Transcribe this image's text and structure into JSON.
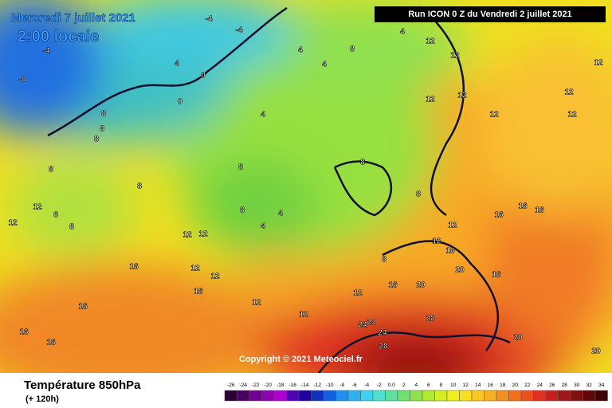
{
  "header": {
    "date": "Mercredi 7 juillet 2021",
    "time": "2:00 locale",
    "run": "Run ICON 0 Z du Vendredi 2 juillet 2021",
    "copyright": "Copyright © 2021 Meteociel.fr"
  },
  "footer": {
    "title": "Température 850hPa",
    "lead": "(+ 120h)"
  },
  "legend": {
    "labels": [
      "-26",
      "-24",
      "-22",
      "-20",
      "-18",
      "-16",
      "-14",
      "-12",
      "-10",
      "-8",
      "-6",
      "-4",
      "-2",
      "0.0",
      "2",
      "4",
      "6",
      "8",
      "10",
      "12",
      "14",
      "16",
      "18",
      "20",
      "22",
      "24",
      "26",
      "28",
      "30",
      "32",
      "34"
    ],
    "colors": [
      "#2a0030",
      "#4a0060",
      "#700090",
      "#9000b0",
      "#b000d0",
      "#5000b0",
      "#2000a0",
      "#1030c0",
      "#1060e0",
      "#2090f0",
      "#30b0f0",
      "#40d0f0",
      "#50e0d0",
      "#60e0a0",
      "#70e070",
      "#90e050",
      "#b0e830",
      "#d0f020",
      "#f0f020",
      "#f8e020",
      "#f8c820",
      "#f8b020",
      "#f09020",
      "#f07020",
      "#e85020",
      "#e03020",
      "#c82020",
      "#a01818",
      "#801010",
      "#600808",
      "#400404"
    ]
  },
  "contour_labels": [
    "-4",
    "-4",
    "-4",
    "-8",
    "4",
    "0",
    "0",
    "4",
    "4",
    "8",
    "4",
    "12",
    "12",
    "12",
    "12",
    "12",
    "12",
    "12",
    "12",
    "8",
    "8",
    "8",
    "4",
    "8",
    "8",
    "8",
    "12",
    "12",
    "8",
    "8",
    "8",
    "4",
    "4",
    "8",
    "8",
    "16",
    "16",
    "16",
    "12",
    "12",
    "16",
    "20",
    "16",
    "12",
    "12",
    "12",
    "12",
    "16",
    "12",
    "12",
    "16",
    "20",
    "16",
    "16",
    "16",
    "24",
    "24",
    "24",
    "28",
    "28",
    "20",
    "20",
    "16",
    "12",
    "8"
  ]
}
